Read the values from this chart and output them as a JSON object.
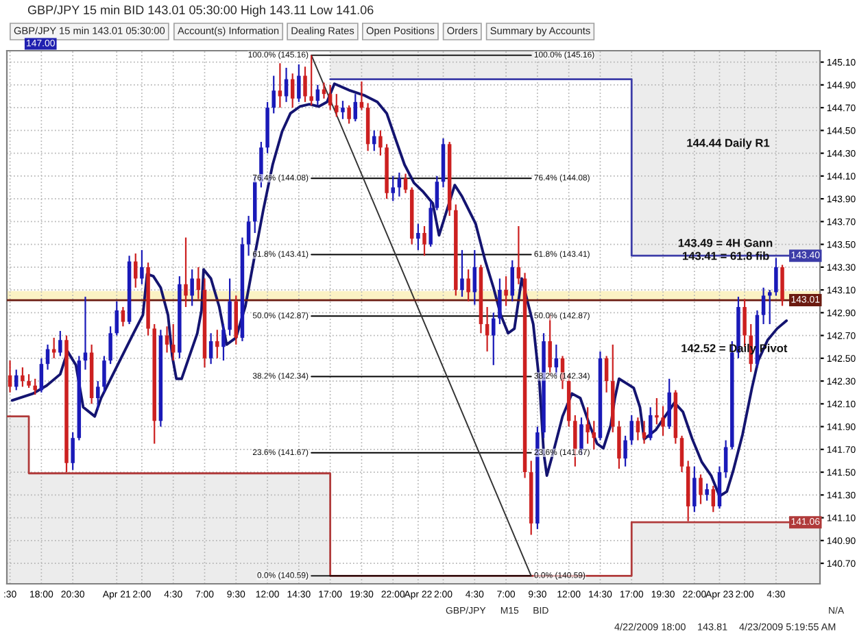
{
  "chart_data": {
    "type": "candlestick",
    "title": "GBP/JPY 15 min BID 143.01 05:30:00 High 143.11 Low 141.06",
    "annotations": [
      "GBP/JPY 15 min 143.01 05:30:00",
      "Account(s) Information",
      "Dealing Rates",
      "Open Positions",
      "Orders",
      "Summary by Accounts",
      "147.00",
      "144.44 Daily R1",
      "143.49 = 4H Gann",
      {
        "text": "143.41 = 61.8 fib",
        "x": "2009-04-23T00:30",
        "y": 143.39
      },
      {
        "text": "142.52 = Daily Pivot",
        "x": "2009-04-23T01:10",
        "y": 142.58
      },
      "GBP/JPY",
      "M15",
      "BID",
      "N/A",
      "4/22/2009 18:00",
      "143.81",
      "4/23/2009 5:19:55 AM"
    ],
    "xlim": [
      "2009-04-20T15:15",
      "2009-04-23T08:00"
    ],
    "ylim": [
      140.52,
      145.2
    ],
    "xticks": [
      {
        "value": "2009-04-20T15:30",
        "label": ":30"
      },
      {
        "value": "2009-04-20T18:00",
        "label": "18:00"
      },
      {
        "value": "2009-04-20T20:30",
        "label": "20:30"
      },
      {
        "value": "2009-04-21T00:00",
        "label": "Apr 21"
      },
      {
        "value": "2009-04-21T02:00",
        "label": "2:00"
      },
      {
        "value": "2009-04-21T04:30",
        "label": "4:30"
      },
      {
        "value": "2009-04-21T07:00",
        "label": "7:00"
      },
      {
        "value": "2009-04-21T09:30",
        "label": "9:30"
      },
      {
        "value": "2009-04-21T12:00",
        "label": "12:00"
      },
      {
        "value": "2009-04-21T14:30",
        "label": "14:30"
      },
      {
        "value": "2009-04-21T17:00",
        "label": "17:00"
      },
      {
        "value": "2009-04-21T19:30",
        "label": "19:30"
      },
      {
        "value": "2009-04-21T22:00",
        "label": "22:00"
      },
      {
        "value": "2009-04-22T00:00",
        "label": "Apr 22"
      },
      {
        "value": "2009-04-22T02:00",
        "label": "2:00"
      },
      {
        "value": "2009-04-22T04:30",
        "label": "4:30"
      },
      {
        "value": "2009-04-22T07:00",
        "label": "7:00"
      },
      {
        "value": "2009-04-22T09:30",
        "label": "9:30"
      },
      {
        "value": "2009-04-22T12:00",
        "label": "12:00"
      },
      {
        "value": "2009-04-22T14:30",
        "label": "14:30"
      },
      {
        "value": "2009-04-22T17:00",
        "label": "17:00"
      },
      {
        "value": "2009-04-22T19:30",
        "label": "19:30"
      },
      {
        "value": "2009-04-22T22:00",
        "label": "22:00"
      },
      {
        "value": "2009-04-23T00:00",
        "label": "Apr 23"
      },
      {
        "value": "2009-04-23T02:00",
        "label": "2:00"
      },
      {
        "value": "2009-04-23T04:30",
        "label": "4:30"
      }
    ],
    "yticks": [
      {
        "value": 140.7,
        "label": "140.70"
      },
      {
        "value": 140.9,
        "label": "140.90"
      },
      {
        "value": 141.1,
        "label": "141.10"
      },
      {
        "value": 141.3,
        "label": "141.30"
      },
      {
        "value": 141.5,
        "label": "141.50"
      },
      {
        "value": 141.7,
        "label": "141.70"
      },
      {
        "value": 141.9,
        "label": "141.90"
      },
      {
        "value": 142.1,
        "label": "142.10"
      },
      {
        "value": 142.3,
        "label": "142.30"
      },
      {
        "value": 142.5,
        "label": "142.50"
      },
      {
        "value": 142.7,
        "label": "142.70"
      },
      {
        "value": 142.9,
        "label": "142.90"
      },
      {
        "value": 143.1,
        "label": "143.10"
      },
      {
        "value": 143.3,
        "label": "143.30"
      },
      {
        "value": 143.5,
        "label": "143.50"
      },
      {
        "value": 143.7,
        "label": "143.70"
      },
      {
        "value": 143.9,
        "label": "143.90"
      },
      {
        "value": 144.1,
        "label": "144.10"
      },
      {
        "value": 144.3,
        "label": "144.30"
      },
      {
        "value": 144.5,
        "label": "144.50"
      },
      {
        "value": 144.7,
        "label": "144.70"
      },
      {
        "value": 144.9,
        "label": "144.90"
      },
      {
        "value": 145.1,
        "label": "145.10"
      }
    ],
    "grid": true,
    "bands": [
      {
        "axis": "y",
        "from": 143.01,
        "to": 143.09,
        "color": "#fbf2c4"
      }
    ],
    "ref_lines": [
      {
        "axis": "y",
        "value": 143.01,
        "label": "143.01",
        "color": "#6b1a10"
      }
    ],
    "series": [
      {
        "type": "step",
        "color": "#3c3ca8",
        "x": [
          "2009-04-21T17:00",
          "2009-04-22T17:00",
          "2009-04-23T08:00"
        ],
        "values": [
          144.95,
          143.4,
          143.4
        ],
        "value_labels": [
          null,
          null,
          "143.40"
        ]
      },
      {
        "type": "step",
        "color": "#b03a3a",
        "x": [
          "2009-04-20T15:15",
          "2009-04-20T17:00",
          "2009-04-21T17:00",
          "2009-04-22T17:00",
          "2009-04-23T08:00"
        ],
        "values": [
          141.99,
          141.49,
          140.59,
          141.06,
          141.06
        ],
        "value_labels": [
          null,
          null,
          null,
          null,
          "141.06"
        ]
      },
      {
        "type": "line",
        "color": "#000000",
        "x": [
          "2009-04-21T15:30",
          "2009-04-22T09:00"
        ],
        "values": [
          145.16,
          145.16
        ],
        "value_labels": [
          "100.0% (145.16)",
          "100.0% (145.16)"
        ]
      },
      {
        "type": "line",
        "color": "#000000",
        "x": [
          "2009-04-21T15:30",
          "2009-04-22T09:00"
        ],
        "values": [
          144.08,
          144.08
        ],
        "value_labels": [
          "76.4% (144.08)",
          "76.4% (144.08)"
        ]
      },
      {
        "type": "line",
        "color": "#000000",
        "x": [
          "2009-04-21T15:30",
          "2009-04-22T09:00"
        ],
        "values": [
          143.41,
          143.41
        ],
        "value_labels": [
          "61.8% (143.41)",
          "61.8% (143.41)"
        ]
      },
      {
        "type": "line",
        "color": "#000000",
        "x": [
          "2009-04-21T15:30",
          "2009-04-22T09:00"
        ],
        "values": [
          142.87,
          142.87
        ],
        "value_labels": [
          "50.0% (142.87)",
          "50.0% (142.87)"
        ]
      },
      {
        "type": "line",
        "color": "#000000",
        "x": [
          "2009-04-21T15:30",
          "2009-04-22T09:00"
        ],
        "values": [
          142.34,
          142.34
        ],
        "value_labels": [
          "38.2% (142.34)",
          "38.2% (142.34)"
        ]
      },
      {
        "type": "line",
        "color": "#000000",
        "x": [
          "2009-04-21T15:30",
          "2009-04-22T09:00"
        ],
        "values": [
          141.67,
          141.67
        ],
        "value_labels": [
          "23.6% (141.67)",
          "23.6% (141.67)"
        ]
      },
      {
        "type": "line",
        "color": "#000000",
        "x": [
          "2009-04-21T15:30",
          "2009-04-22T09:00"
        ],
        "values": [
          140.59,
          140.59
        ],
        "value_labels": [
          "0.0% (140.59)",
          "0.0% (140.59)"
        ]
      },
      {
        "type": "line",
        "color": "#333333",
        "x": [
          "2009-04-21T15:30",
          "2009-04-22T09:00"
        ],
        "values": [
          145.16,
          140.59
        ]
      },
      {
        "type": "line",
        "color": "#141470",
        "x": [
          "2009-04-20T15:40",
          "2009-04-20T17:20",
          "2009-04-20T18:25",
          "2009-04-20T19:30",
          "2009-04-20T20:05",
          "2009-04-20T20:45",
          "2009-04-20T21:20",
          "2009-04-20T22:15",
          "2009-04-20T22:45",
          "2009-04-21T00:15",
          "2009-04-21T01:20",
          "2009-04-21T02:05",
          "2009-04-21T02:25",
          "2009-04-21T02:55",
          "2009-04-21T03:30",
          "2009-04-21T04:05",
          "2009-04-21T04:25",
          "2009-04-21T04:45",
          "2009-04-21T05:10",
          "2009-04-21T05:40",
          "2009-04-21T06:25",
          "2009-04-21T06:45",
          "2009-04-21T06:55",
          "2009-04-21T07:30",
          "2009-04-21T08:10",
          "2009-04-21T08:45",
          "2009-04-21T09:30",
          "2009-04-21T10:15",
          "2009-04-21T10:55",
          "2009-04-21T11:40",
          "2009-04-21T12:25",
          "2009-04-21T13:10",
          "2009-04-21T13:50",
          "2009-04-21T14:35",
          "2009-04-21T15:20",
          "2009-04-21T16:05",
          "2009-04-21T16:45",
          "2009-04-21T17:20",
          "2009-04-21T18:35",
          "2009-04-21T19:40",
          "2009-04-21T20:45",
          "2009-04-21T21:30",
          "2009-04-21T22:15",
          "2009-04-21T22:55",
          "2009-04-21T23:40",
          "2009-04-22T00:25",
          "2009-04-22T01:10",
          "2009-04-22T01:40",
          "2009-04-22T02:55",
          "2009-04-22T03:30",
          "2009-04-22T04:35",
          "2009-04-22T05:20",
          "2009-04-22T06:00",
          "2009-04-22T06:35",
          "2009-04-22T07:10",
          "2009-04-22T07:40",
          "2009-04-22T08:15",
          "2009-04-22T09:10",
          "2009-04-22T09:40",
          "2009-04-22T10:00",
          "2009-04-22T10:15",
          "2009-04-22T10:45",
          "2009-04-22T11:30",
          "2009-04-22T12:15",
          "2009-04-22T12:55",
          "2009-04-22T13:40",
          "2009-04-22T14:15",
          "2009-04-22T14:45",
          "2009-04-22T15:20",
          "2009-04-22T15:40",
          "2009-04-22T16:00",
          "2009-04-22T16:35",
          "2009-04-22T17:10",
          "2009-04-22T17:40",
          "2009-04-22T18:00",
          "2009-04-22T18:55",
          "2009-04-22T19:40",
          "2009-04-22T20:25",
          "2009-04-22T21:05",
          "2009-04-22T21:50",
          "2009-04-22T22:35",
          "2009-04-22T23:20",
          "2009-04-23T00:00",
          "2009-04-23T00:35",
          "2009-04-23T01:05",
          "2009-04-23T01:50",
          "2009-04-23T02:35",
          "2009-04-23T03:05",
          "2009-04-23T03:50",
          "2009-04-23T04:35",
          "2009-04-23T05:20"
        ],
        "values": [
          142.13,
          142.19,
          142.26,
          142.36,
          142.56,
          142.44,
          142.07,
          141.99,
          142.15,
          142.48,
          142.72,
          142.88,
          143.24,
          143.22,
          143.12,
          142.88,
          142.52,
          142.32,
          142.32,
          142.48,
          142.72,
          142.92,
          143.28,
          143.2,
          142.95,
          142.62,
          142.68,
          142.96,
          143.36,
          143.8,
          144.2,
          144.49,
          144.65,
          144.71,
          144.73,
          144.71,
          144.75,
          144.91,
          144.85,
          144.81,
          144.75,
          144.65,
          144.41,
          144.2,
          144.04,
          143.96,
          143.86,
          143.58,
          144.02,
          143.92,
          143.68,
          143.36,
          143.12,
          142.88,
          142.72,
          142.76,
          143.2,
          142.8,
          142.28,
          141.67,
          141.47,
          141.67,
          141.99,
          142.19,
          142.15,
          141.91,
          141.75,
          141.71,
          141.91,
          142.15,
          142.32,
          142.28,
          142.24,
          142.07,
          141.79,
          141.87,
          141.99,
          142.11,
          142.03,
          141.79,
          141.59,
          141.47,
          141.29,
          141.33,
          141.51,
          141.83,
          142.24,
          142.48,
          142.66,
          142.76,
          142.83
        ]
      },
      {
        "x": [
          "2009-04-20T15:30",
          "2009-04-20T16:00",
          "2009-04-20T16:30",
          "2009-04-20T17:00",
          "2009-04-20T17:30",
          "2009-04-20T18:00",
          "2009-04-20T18:30",
          "2009-04-20T19:00",
          "2009-04-20T19:30",
          "2009-04-20T20:00",
          "2009-04-20T20:30",
          "2009-04-20T21:00",
          "2009-04-20T21:30",
          "2009-04-20T22:00",
          "2009-04-20T22:30",
          "2009-04-20T23:00",
          "2009-04-20T23:30",
          "2009-04-21T00:00",
          "2009-04-21T00:30",
          "2009-04-21T01:00",
          "2009-04-21T01:30",
          "2009-04-21T02:00",
          "2009-04-21T02:30",
          "2009-04-21T03:00",
          "2009-04-21T03:30",
          "2009-04-21T04:00",
          "2009-04-21T04:30",
          "2009-04-21T05:00",
          "2009-04-21T05:30",
          "2009-04-21T06:00",
          "2009-04-21T06:30",
          "2009-04-21T07:00",
          "2009-04-21T07:30",
          "2009-04-21T08:00",
          "2009-04-21T08:30",
          "2009-04-21T09:00",
          "2009-04-21T09:30",
          "2009-04-21T10:00",
          "2009-04-21T10:30",
          "2009-04-21T11:00",
          "2009-04-21T11:30",
          "2009-04-21T12:00",
          "2009-04-21T12:30",
          "2009-04-21T13:00",
          "2009-04-21T13:30",
          "2009-04-21T14:00",
          "2009-04-21T14:30",
          "2009-04-21T15:00",
          "2009-04-21T15:30",
          "2009-04-21T16:00",
          "2009-04-21T16:30",
          "2009-04-21T17:00",
          "2009-04-21T17:30",
          "2009-04-21T18:00",
          "2009-04-21T18:30",
          "2009-04-21T19:00",
          "2009-04-21T19:30",
          "2009-04-21T20:00",
          "2009-04-21T20:30",
          "2009-04-21T21:00",
          "2009-04-21T21:30",
          "2009-04-21T22:00",
          "2009-04-21T22:30",
          "2009-04-21T23:00",
          "2009-04-21T23:30",
          "2009-04-22T00:00",
          "2009-04-22T00:30",
          "2009-04-22T01:00",
          "2009-04-22T01:30",
          "2009-04-22T02:00",
          "2009-04-22T02:30",
          "2009-04-22T03:00",
          "2009-04-22T03:30",
          "2009-04-22T04:00",
          "2009-04-22T04:30",
          "2009-04-22T05:00",
          "2009-04-22T05:30",
          "2009-04-22T06:00",
          "2009-04-22T06:30",
          "2009-04-22T07:00",
          "2009-04-22T07:30",
          "2009-04-22T08:00",
          "2009-04-22T08:30",
          "2009-04-22T09:00",
          "2009-04-22T09:30",
          "2009-04-22T10:00",
          "2009-04-22T10:30",
          "2009-04-22T11:00",
          "2009-04-22T11:30",
          "2009-04-22T12:00",
          "2009-04-22T12:30",
          "2009-04-22T13:00",
          "2009-04-22T13:30",
          "2009-04-22T14:00",
          "2009-04-22T14:30",
          "2009-04-22T15:00",
          "2009-04-22T15:30",
          "2009-04-22T16:00",
          "2009-04-22T16:30",
          "2009-04-22T17:00",
          "2009-04-22T17:30",
          "2009-04-22T18:00",
          "2009-04-22T18:30",
          "2009-04-22T19:00",
          "2009-04-22T19:30",
          "2009-04-22T20:00",
          "2009-04-22T20:30",
          "2009-04-22T21:00",
          "2009-04-22T21:30",
          "2009-04-22T22:00",
          "2009-04-22T22:30",
          "2009-04-22T23:00",
          "2009-04-22T23:30",
          "2009-04-23T00:00",
          "2009-04-23T00:30",
          "2009-04-23T01:00",
          "2009-04-23T01:30",
          "2009-04-23T02:00",
          "2009-04-23T02:30",
          "2009-04-23T03:00",
          "2009-04-23T03:30",
          "2009-04-23T04:00",
          "2009-04-23T04:30",
          "2009-04-23T05:00"
        ],
        "ohlc": [
          [
            142.35,
            142.48,
            142.2,
            142.25
          ],
          [
            142.25,
            142.4,
            142.22,
            142.35
          ],
          [
            142.35,
            142.42,
            142.25,
            142.3
          ],
          [
            142.3,
            142.36,
            142.24,
            142.26
          ],
          [
            142.26,
            142.32,
            142.18,
            142.22
          ],
          [
            142.22,
            142.5,
            142.2,
            142.45
          ],
          [
            142.45,
            142.62,
            142.4,
            142.58
          ],
          [
            142.58,
            142.68,
            142.5,
            142.55
          ],
          [
            142.55,
            142.74,
            142.52,
            142.66
          ],
          [
            142.66,
            142.7,
            141.5,
            141.58
          ],
          [
            141.58,
            141.85,
            141.52,
            141.8
          ],
          [
            141.8,
            142.52,
            141.78,
            142.48
          ],
          [
            142.48,
            143.04,
            142.4,
            142.55
          ],
          [
            142.55,
            142.62,
            142.1,
            142.15
          ],
          [
            142.15,
            142.3,
            142.05,
            142.25
          ],
          [
            142.25,
            142.52,
            142.2,
            142.48
          ],
          [
            142.48,
            142.78,
            142.45,
            142.72
          ],
          [
            142.72,
            143.0,
            142.7,
            142.92
          ],
          [
            142.92,
            142.95,
            142.78,
            142.82
          ],
          [
            142.82,
            143.4,
            142.8,
            143.35
          ],
          [
            143.35,
            143.42,
            143.12,
            143.2
          ],
          [
            143.2,
            143.45,
            143.15,
            143.3
          ],
          [
            143.3,
            143.34,
            142.7,
            142.76
          ],
          [
            142.76,
            142.8,
            141.75,
            141.95
          ],
          [
            141.95,
            142.75,
            141.9,
            142.7
          ],
          [
            142.7,
            142.78,
            142.55,
            142.62
          ],
          [
            142.62,
            142.8,
            142.48,
            142.55
          ],
          [
            142.55,
            143.22,
            142.5,
            143.15
          ],
          [
            143.15,
            143.56,
            142.95,
            143.05
          ],
          [
            143.05,
            143.28,
            142.96,
            143.2
          ],
          [
            143.2,
            143.3,
            143.02,
            143.1
          ],
          [
            143.1,
            143.2,
            142.42,
            142.5
          ],
          [
            142.5,
            142.72,
            142.45,
            142.65
          ],
          [
            142.65,
            142.75,
            142.5,
            142.6
          ],
          [
            142.6,
            142.8,
            142.48,
            142.75
          ],
          [
            142.75,
            143.2,
            142.7,
            143.0
          ],
          [
            143.0,
            143.05,
            142.62,
            142.68
          ],
          [
            142.68,
            143.56,
            142.65,
            143.5
          ],
          [
            143.5,
            143.75,
            143.4,
            143.7
          ],
          [
            143.7,
            144.1,
            143.6,
            144.05
          ],
          [
            144.05,
            144.4,
            144.0,
            144.35
          ],
          [
            144.35,
            144.75,
            144.3,
            144.7
          ],
          [
            144.7,
            144.98,
            144.65,
            144.85
          ],
          [
            144.85,
            145.09,
            144.7,
            144.8
          ],
          [
            144.8,
            145.05,
            144.75,
            144.95
          ],
          [
            144.95,
            145.0,
            144.7,
            144.78
          ],
          [
            144.78,
            145.08,
            144.75,
            144.98
          ],
          [
            144.98,
            145.06,
            144.75,
            144.8
          ],
          [
            144.8,
            145.16,
            144.72,
            144.76
          ],
          [
            144.76,
            144.9,
            144.72,
            144.86
          ],
          [
            144.86,
            144.92,
            144.78,
            144.82
          ],
          [
            144.82,
            144.9,
            144.68,
            144.72
          ],
          [
            144.72,
            144.82,
            144.62,
            144.66
          ],
          [
            144.66,
            144.76,
            144.6,
            144.7
          ],
          [
            144.7,
            144.72,
            144.56,
            144.6
          ],
          [
            144.6,
            144.82,
            144.58,
            144.75
          ],
          [
            144.75,
            144.93,
            144.68,
            144.7
          ],
          [
            144.7,
            144.74,
            144.32,
            144.38
          ],
          [
            144.38,
            144.5,
            144.32,
            144.45
          ],
          [
            144.45,
            144.5,
            144.28,
            144.35
          ],
          [
            144.35,
            144.38,
            143.9,
            143.95
          ],
          [
            143.95,
            144.1,
            143.88,
            144.0
          ],
          [
            144.0,
            144.13,
            143.92,
            144.08
          ],
          [
            144.08,
            144.12,
            143.95,
            143.98
          ],
          [
            143.98,
            144.0,
            143.5,
            143.55
          ],
          [
            143.55,
            143.68,
            143.45,
            143.6
          ],
          [
            143.6,
            143.66,
            143.4,
            143.5
          ],
          [
            143.5,
            143.88,
            143.48,
            143.82
          ],
          [
            143.82,
            144.1,
            143.8,
            144.05
          ],
          [
            144.05,
            144.43,
            144.0,
            144.38
          ],
          [
            144.38,
            144.4,
            143.75,
            143.8
          ],
          [
            143.8,
            143.85,
            143.05,
            143.1
          ],
          [
            143.1,
            143.45,
            143.04,
            143.2
          ],
          [
            143.2,
            143.28,
            143.0,
            143.08
          ],
          [
            143.08,
            143.45,
            142.97,
            143.3
          ],
          [
            143.3,
            143.32,
            142.72,
            142.8
          ],
          [
            142.8,
            142.95,
            142.56,
            142.7
          ],
          [
            142.7,
            142.9,
            142.44,
            142.85
          ],
          [
            142.85,
            143.2,
            142.8,
            143.1
          ],
          [
            143.1,
            143.22,
            142.96,
            143.05
          ],
          [
            143.05,
            143.36,
            143.0,
            143.3
          ],
          [
            143.3,
            143.66,
            143.15,
            143.2
          ],
          [
            143.2,
            143.25,
            141.45,
            141.5
          ],
          [
            141.5,
            141.6,
            140.95,
            141.05
          ],
          [
            141.05,
            141.9,
            141.0,
            141.85
          ],
          [
            141.85,
            142.72,
            141.8,
            142.65
          ],
          [
            142.65,
            142.88,
            142.35,
            142.42
          ],
          [
            142.42,
            142.62,
            142.35,
            142.5
          ],
          [
            142.5,
            142.52,
            142.23,
            142.3
          ],
          [
            142.3,
            142.36,
            141.9,
            141.95
          ],
          [
            141.95,
            142.0,
            141.55,
            141.7
          ],
          [
            141.7,
            141.98,
            141.65,
            141.92
          ],
          [
            141.92,
            142.07,
            141.75,
            141.85
          ],
          [
            141.85,
            141.95,
            141.7,
            141.8
          ],
          [
            141.8,
            142.56,
            141.78,
            142.5
          ],
          [
            142.5,
            142.52,
            142.2,
            142.3
          ],
          [
            142.3,
            142.62,
            141.85,
            141.9
          ],
          [
            141.9,
            141.95,
            141.53,
            141.62
          ],
          [
            141.62,
            141.82,
            141.55,
            141.78
          ],
          [
            141.78,
            142.0,
            141.74,
            141.95
          ],
          [
            141.95,
            141.98,
            141.78,
            141.85
          ],
          [
            141.85,
            141.95,
            141.75,
            141.8
          ],
          [
            141.8,
            142.07,
            141.78,
            142.0
          ],
          [
            142.0,
            142.15,
            141.92,
            141.98
          ],
          [
            141.98,
            142.08,
            141.82,
            141.9
          ],
          [
            141.9,
            142.32,
            141.88,
            142.2
          ],
          [
            142.2,
            142.22,
            141.75,
            141.8
          ],
          [
            141.8,
            141.82,
            141.5,
            141.55
          ],
          [
            141.55,
            141.6,
            141.07,
            141.2
          ],
          [
            141.2,
            141.55,
            141.15,
            141.45
          ],
          [
            141.45,
            141.48,
            141.22,
            141.3
          ],
          [
            141.3,
            141.4,
            141.25,
            141.35
          ],
          [
            141.35,
            141.38,
            141.15,
            141.2
          ],
          [
            141.2,
            141.55,
            141.18,
            141.5
          ],
          [
            141.5,
            141.78,
            141.45,
            141.72
          ],
          [
            141.72,
            142.65,
            141.7,
            142.55
          ],
          [
            142.55,
            143.04,
            142.5,
            142.95
          ],
          [
            142.95,
            143.02,
            142.6,
            142.7
          ],
          [
            142.7,
            142.8,
            142.38,
            142.45
          ],
          [
            142.45,
            142.92,
            142.42,
            142.88
          ],
          [
            142.88,
            143.12,
            142.8,
            143.05
          ],
          [
            143.05,
            143.1,
            142.8,
            143.08
          ],
          [
            143.08,
            143.38,
            143.05,
            143.3
          ],
          [
            143.3,
            143.32,
            142.96,
            143.01
          ]
        ],
        "colors": [
          "#cc2020",
          "#1a1ab8",
          "#cc2020",
          "#cc2020",
          "#cc2020",
          "#1a1ab8",
          "#1a1ab8",
          "#cc2020",
          "#1a1ab8",
          "#cc2020",
          "#1a1ab8",
          "#1a1ab8",
          "#1a1ab8",
          "#cc2020",
          "#1a1ab8",
          "#1a1ab8",
          "#1a1ab8",
          "#1a1ab8",
          "#cc2020",
          "#1a1ab8",
          "#cc2020",
          "#1a1ab8",
          "#cc2020",
          "#cc2020",
          "#1a1ab8",
          "#cc2020",
          "#cc2020",
          "#1a1ab8",
          "#cc2020",
          "#1a1ab8",
          "#cc2020",
          "#cc2020",
          "#1a1ab8",
          "#cc2020",
          "#1a1ab8",
          "#1a1ab8",
          "#cc2020",
          "#1a1ab8",
          "#1a1ab8",
          "#1a1ab8",
          "#1a1ab8",
          "#1a1ab8",
          "#1a1ab8",
          "#cc2020",
          "#1a1ab8",
          "#cc2020",
          "#1a1ab8",
          "#cc2020",
          "#cc2020",
          "#1a1ab8",
          "#cc2020",
          "#cc2020",
          "#cc2020",
          "#1a1ab8",
          "#cc2020",
          "#1a1ab8",
          "#cc2020",
          "#cc2020",
          "#1a1ab8",
          "#cc2020",
          "#cc2020",
          "#1a1ab8",
          "#1a1ab8",
          "#cc2020",
          "#cc2020",
          "#1a1ab8",
          "#cc2020",
          "#1a1ab8",
          "#1a1ab8",
          "#1a1ab8",
          "#cc2020",
          "#cc2020",
          "#1a1ab8",
          "#cc2020",
          "#1a1ab8",
          "#cc2020",
          "#cc2020",
          "#1a1ab8",
          "#1a1ab8",
          "#cc2020",
          "#1a1ab8",
          "#cc2020",
          "#cc2020",
          "#cc2020",
          "#1a1ab8",
          "#1a1ab8",
          "#cc2020",
          "#1a1ab8",
          "#cc2020",
          "#cc2020",
          "#cc2020",
          "#1a1ab8",
          "#cc2020",
          "#cc2020",
          "#1a1ab8",
          "#cc2020",
          "#cc2020",
          "#cc2020",
          "#1a1ab8",
          "#1a1ab8",
          "#cc2020",
          "#cc2020",
          "#1a1ab8",
          "#cc2020",
          "#cc2020",
          "#1a1ab8",
          "#cc2020",
          "#cc2020",
          "#cc2020",
          "#1a1ab8",
          "#cc2020",
          "#1a1ab8",
          "#cc2020",
          "#1a1ab8",
          "#1a1ab8",
          "#1a1ab8",
          "#1a1ab8",
          "#cc2020",
          "#cc2020",
          "#1a1ab8",
          "#1a1ab8",
          "#1a1ab8",
          "#1a1ab8",
          "#cc2020"
        ]
      }
    ]
  }
}
